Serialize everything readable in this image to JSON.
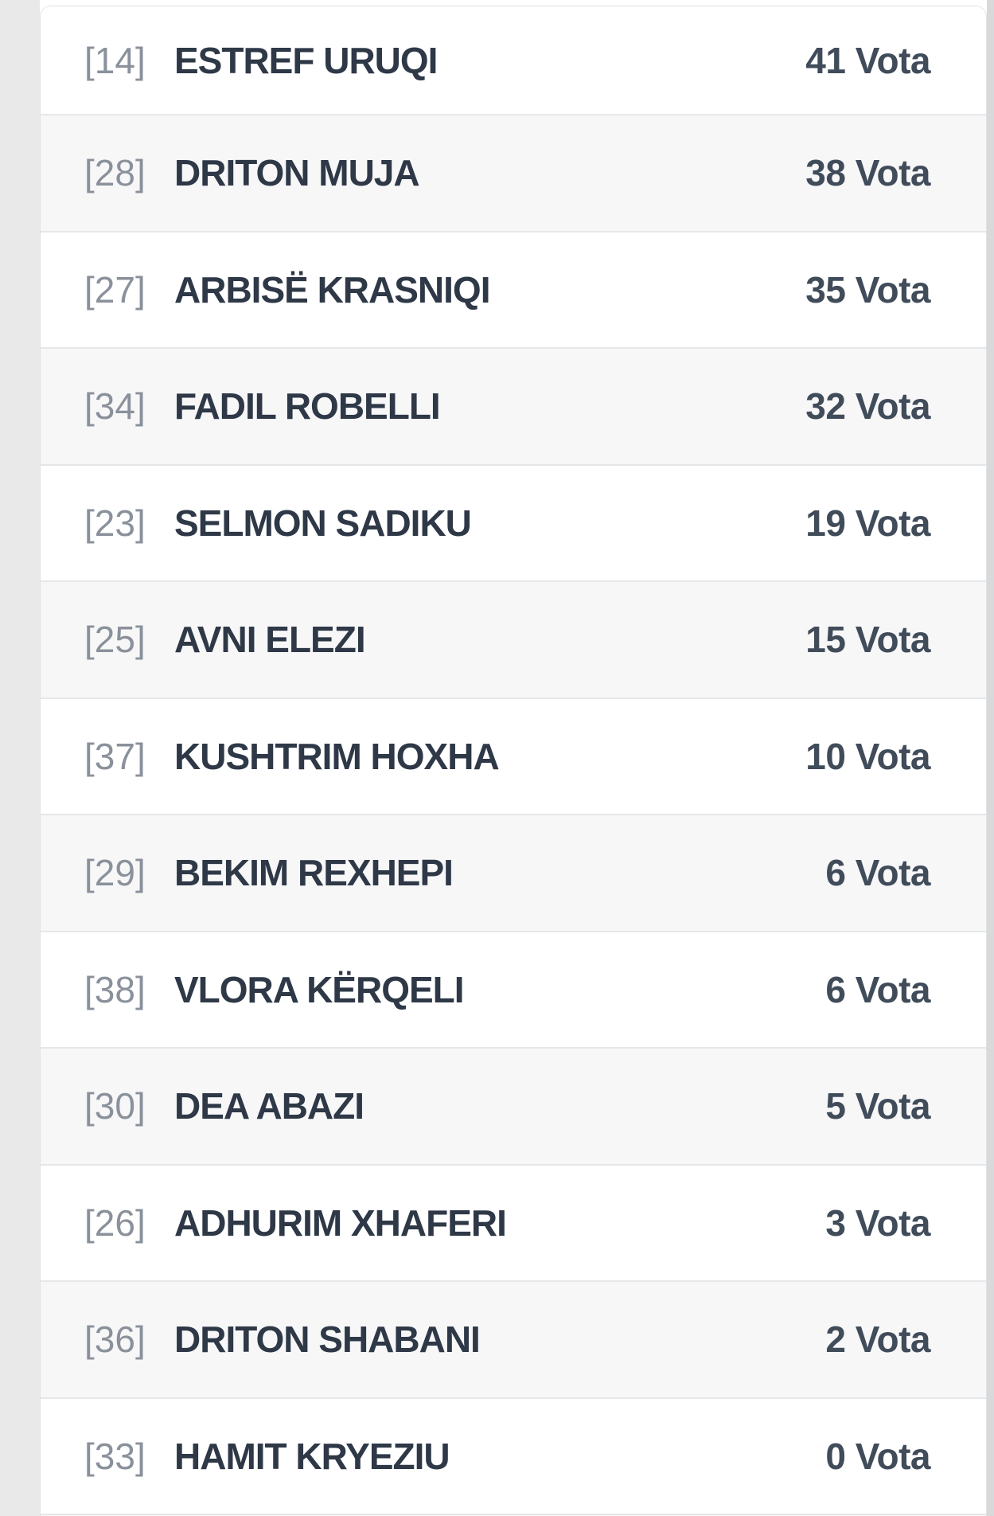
{
  "list": {
    "unit": "Vota",
    "rows": [
      {
        "ballot": "[14]",
        "name": "ESTREF URUQI",
        "votes": 41,
        "votes_label": "41 Vota"
      },
      {
        "ballot": "[28]",
        "name": "DRITON MUJA",
        "votes": 38,
        "votes_label": "38 Vota"
      },
      {
        "ballot": "[27]",
        "name": "ARBISË KRASNIQI",
        "votes": 35,
        "votes_label": "35 Vota"
      },
      {
        "ballot": "[34]",
        "name": "FADIL ROBELLI",
        "votes": 32,
        "votes_label": "32 Vota"
      },
      {
        "ballot": "[23]",
        "name": "SELMON SADIKU",
        "votes": 19,
        "votes_label": "19 Vota"
      },
      {
        "ballot": "[25]",
        "name": "AVNI ELEZI",
        "votes": 15,
        "votes_label": "15 Vota"
      },
      {
        "ballot": "[37]",
        "name": "KUSHTRIM HOXHA",
        "votes": 10,
        "votes_label": "10 Vota"
      },
      {
        "ballot": "[29]",
        "name": "BEKIM REXHEPI",
        "votes": 6,
        "votes_label": "6 Vota"
      },
      {
        "ballot": "[38]",
        "name": "VLORA KËRQELI",
        "votes": 6,
        "votes_label": "6 Vota"
      },
      {
        "ballot": "[30]",
        "name": "DEA ABAZI",
        "votes": 5,
        "votes_label": "5 Vota"
      },
      {
        "ballot": "[26]",
        "name": "ADHURIM XHAFERI",
        "votes": 3,
        "votes_label": "3 Vota"
      },
      {
        "ballot": "[36]",
        "name": "DRITON SHABANI",
        "votes": 2,
        "votes_label": "2 Vota"
      },
      {
        "ballot": "[33]",
        "name": "HAMIT KRYEZIU",
        "votes": 0,
        "votes_label": "0 Vota"
      }
    ]
  },
  "colors": {
    "gutter": "#e9e9ea",
    "scrollbar": "#d8d9db",
    "card_border": "#e1e2e4",
    "row_border": "#e6e7e9",
    "row_alt": "#f7f7f8",
    "name_color": "#2e3847",
    "ballot_color": "#8a919b",
    "votes_color": "#414c5a"
  }
}
